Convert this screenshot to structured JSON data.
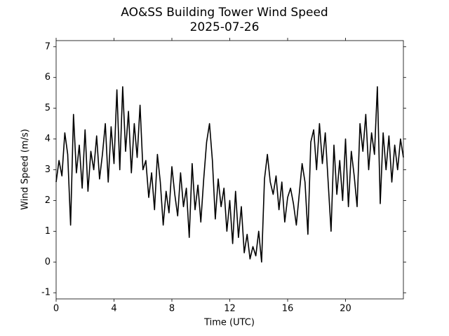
{
  "chart_data": {
    "type": "line",
    "title": "AO&SS Building Tower Wind Speed",
    "subtitle": "2025-07-26",
    "x_label": "Time (UTC)",
    "y_label": "Wind Speed (m/s)",
    "xlim": [
      0,
      24
    ],
    "xticks": [
      0,
      4,
      8,
      12,
      16,
      20
    ],
    "ylim": [
      -1.2,
      7.2
    ],
    "yticks": [
      -1,
      0,
      1,
      2,
      3,
      4,
      5,
      6,
      7
    ],
    "x": [
      0.0,
      0.2,
      0.4,
      0.6,
      0.8,
      1.0,
      1.2,
      1.4,
      1.6,
      1.8,
      2.0,
      2.2,
      2.4,
      2.6,
      2.8,
      3.0,
      3.2,
      3.4,
      3.6,
      3.8,
      4.0,
      4.2,
      4.4,
      4.6,
      4.8,
      5.0,
      5.2,
      5.4,
      5.6,
      5.8,
      6.0,
      6.2,
      6.4,
      6.6,
      6.8,
      7.0,
      7.2,
      7.4,
      7.6,
      7.8,
      8.0,
      8.2,
      8.4,
      8.6,
      8.8,
      9.0,
      9.2,
      9.4,
      9.6,
      9.8,
      10.0,
      10.2,
      10.4,
      10.6,
      10.8,
      11.0,
      11.2,
      11.4,
      11.6,
      11.8,
      12.0,
      12.2,
      12.4,
      12.6,
      12.8,
      13.0,
      13.2,
      13.4,
      13.6,
      13.8,
      14.0,
      14.2,
      14.4,
      14.6,
      14.8,
      15.0,
      15.2,
      15.4,
      15.6,
      15.8,
      16.0,
      16.2,
      16.4,
      16.6,
      16.8,
      17.0,
      17.2,
      17.4,
      17.6,
      17.8,
      18.0,
      18.2,
      18.4,
      18.6,
      18.8,
      19.0,
      19.2,
      19.4,
      19.6,
      19.8,
      20.0,
      20.2,
      20.4,
      20.6,
      20.8,
      21.0,
      21.2,
      21.4,
      21.6,
      21.8,
      22.0,
      22.2,
      22.4,
      22.6,
      22.8,
      23.0,
      23.2,
      23.4,
      23.6,
      23.8,
      24.0
    ],
    "series": [
      {
        "name": "Wind Speed",
        "color": "#000000",
        "values": [
          2.6,
          3.3,
          2.8,
          4.2,
          3.5,
          1.2,
          4.8,
          2.9,
          3.8,
          2.4,
          4.3,
          2.3,
          3.6,
          3.0,
          4.1,
          2.7,
          3.5,
          4.5,
          2.6,
          4.4,
          3.2,
          5.6,
          3.0,
          5.7,
          3.6,
          4.9,
          2.9,
          4.5,
          3.4,
          5.1,
          3.0,
          3.3,
          2.1,
          2.9,
          1.7,
          3.5,
          2.6,
          1.2,
          2.3,
          1.6,
          3.1,
          2.2,
          1.5,
          2.9,
          1.8,
          2.4,
          0.8,
          3.2,
          1.7,
          2.5,
          1.3,
          2.7,
          3.9,
          4.5,
          3.3,
          1.4,
          2.7,
          1.8,
          2.4,
          1.0,
          2.0,
          0.6,
          2.3,
          0.8,
          1.8,
          0.3,
          0.9,
          0.1,
          0.5,
          0.2,
          1.0,
          0.0,
          2.7,
          3.5,
          2.6,
          2.2,
          2.8,
          1.7,
          2.6,
          1.3,
          2.1,
          2.4,
          1.9,
          1.2,
          2.2,
          3.2,
          2.6,
          0.9,
          3.9,
          4.3,
          3.0,
          4.5,
          3.2,
          4.2,
          2.6,
          1.0,
          3.8,
          2.2,
          3.3,
          2.0,
          4.0,
          1.8,
          3.6,
          2.8,
          1.8,
          4.5,
          3.6,
          4.8,
          3.0,
          4.2,
          3.5,
          5.7,
          1.9,
          4.2,
          3.0,
          4.1,
          2.6,
          3.8,
          3.0,
          4.0,
          3.4
        ]
      }
    ]
  }
}
